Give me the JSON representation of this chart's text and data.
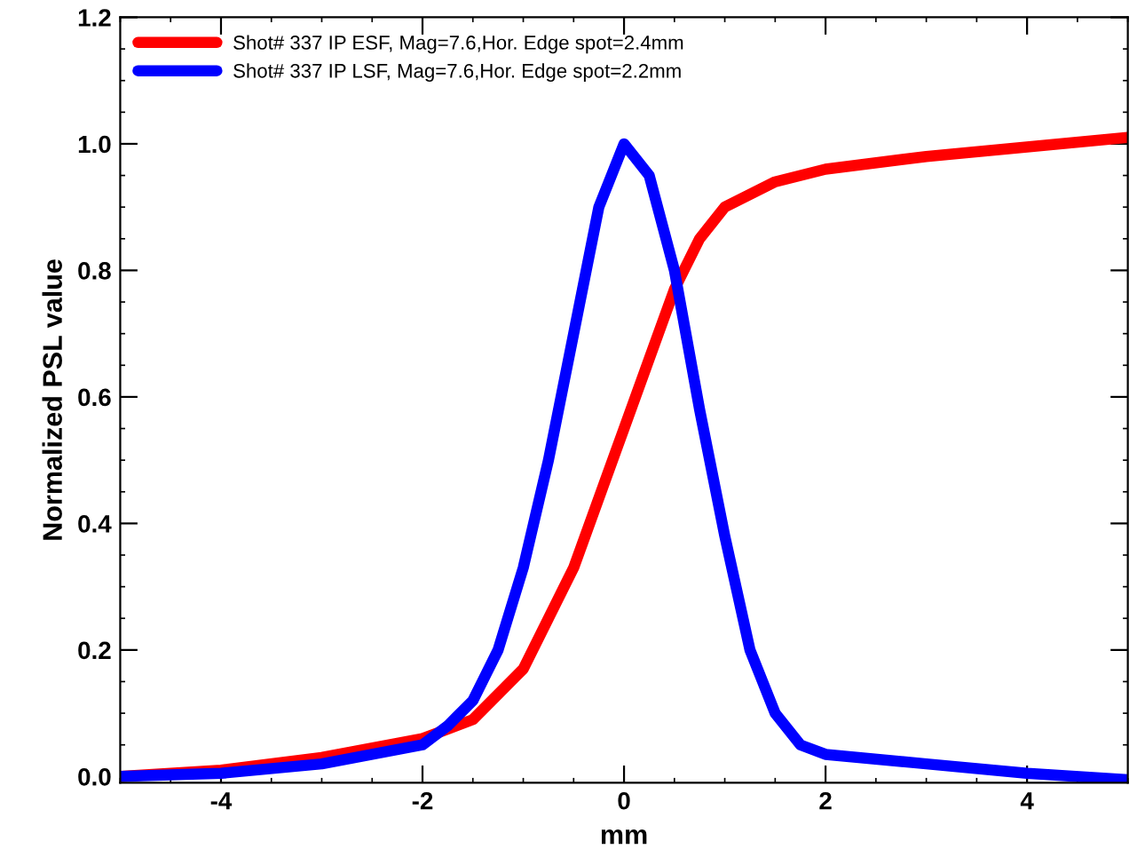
{
  "chart_data": {
    "type": "line",
    "xlabel": "mm",
    "ylabel": "Normalized PSL value",
    "xlim": [
      -5,
      5
    ],
    "ylim": [
      -0.01,
      1.2
    ],
    "xticks": [
      -4,
      -2,
      0,
      2,
      4
    ],
    "yticks": [
      {
        "value": 0,
        "label": "0.0"
      },
      {
        "value": 0.2,
        "label": "0.2"
      },
      {
        "value": 0.4,
        "label": "0.4"
      },
      {
        "value": 0.6,
        "label": "0.6"
      },
      {
        "value": 0.8,
        "label": "0.8"
      },
      {
        "value": 1.0,
        "label": "1.0"
      },
      {
        "value": 1.2,
        "label": "1.2"
      }
    ],
    "grid": false,
    "legend": "top left",
    "line_style": "solid",
    "marker": "none",
    "series": [
      {
        "name": "Shot# 337 IP ESF, Mag=7.6,Hor. Edge spot=2.4mm",
        "color": "#ff0000",
        "x": [
          -5,
          -4,
          -3,
          -2,
          -1.5,
          -1,
          -0.5,
          0,
          0.25,
          0.5,
          0.75,
          1,
          1.5,
          2,
          3,
          4,
          5
        ],
        "values": [
          0,
          0.01,
          0.03,
          0.06,
          0.09,
          0.17,
          0.33,
          0.55,
          0.66,
          0.77,
          0.85,
          0.9,
          0.94,
          0.96,
          0.98,
          0.995,
          1.01
        ]
      },
      {
        "name": "Shot# 337 IP LSF, Mag=7.6,Hor. Edge spot=2.2mm",
        "color": "#0000ff",
        "x": [
          -5,
          -4,
          -3,
          -2,
          -1.75,
          -1.5,
          -1.25,
          -1,
          -0.75,
          -0.5,
          -0.25,
          0,
          0.25,
          0.5,
          0.75,
          1,
          1.25,
          1.5,
          1.75,
          2,
          3,
          4,
          5
        ],
        "values": [
          0,
          0.005,
          0.02,
          0.05,
          0.08,
          0.12,
          0.2,
          0.33,
          0.5,
          0.7,
          0.9,
          1.0,
          0.95,
          0.8,
          0.58,
          0.38,
          0.2,
          0.1,
          0.05,
          0.035,
          0.02,
          0.005,
          -0.005
        ]
      }
    ]
  }
}
